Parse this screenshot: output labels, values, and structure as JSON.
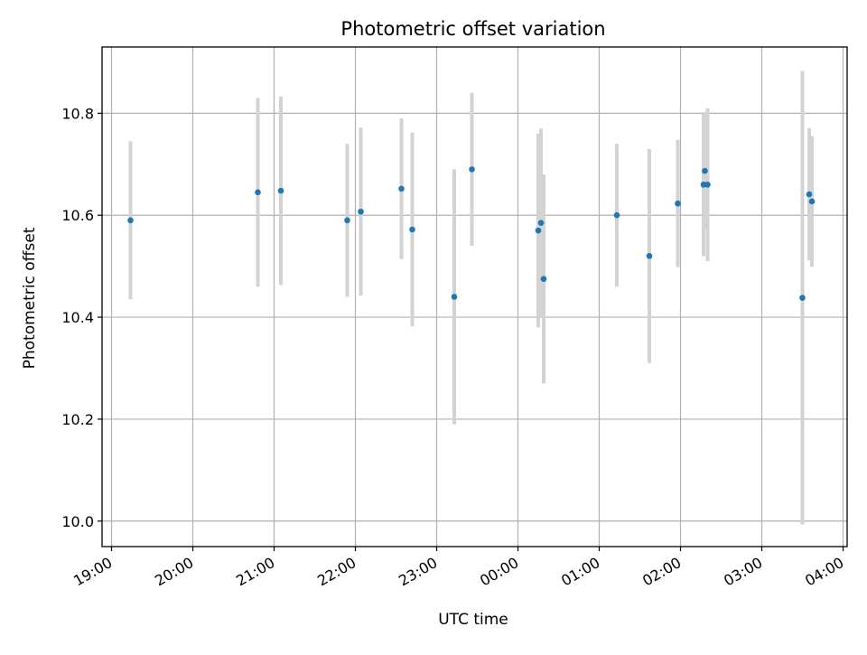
{
  "chart_data": {
    "type": "scatter",
    "title": "Photometric offset variation",
    "xlabel": "UTC time",
    "ylabel": "Photometric offset",
    "x_tick_labels": [
      "19:00",
      "20:00",
      "21:00",
      "22:00",
      "23:00",
      "00:00",
      "01:00",
      "02:00",
      "03:00",
      "04:00"
    ],
    "y_tick_labels": [
      "10.0",
      "10.2",
      "10.4",
      "10.6",
      "10.8"
    ],
    "y_ticks": [
      10.0,
      10.2,
      10.4,
      10.6,
      10.8
    ],
    "xlim": [
      "18:53",
      "04:03"
    ],
    "ylim": [
      9.95,
      10.93
    ],
    "grid": true,
    "marker_color": "#1f77b4",
    "errorbar_color": "#d3d3d3",
    "series": [
      {
        "points": [
          {
            "x": "19:14",
            "y": 10.59,
            "err": 0.155
          },
          {
            "x": "20:48",
            "y": 10.645,
            "err": 0.185
          },
          {
            "x": "21:05",
            "y": 10.648,
            "err": 0.185
          },
          {
            "x": "21:54",
            "y": 10.59,
            "err": 0.15
          },
          {
            "x": "22:04",
            "y": 10.607,
            "err": 0.165
          },
          {
            "x": "22:34",
            "y": 10.652,
            "err": 0.138
          },
          {
            "x": "22:42",
            "y": 10.572,
            "err": 0.19
          },
          {
            "x": "23:13",
            "y": 10.44,
            "err": 0.25
          },
          {
            "x": "23:26",
            "y": 10.69,
            "err": 0.15
          },
          {
            "x": "00:15",
            "y": 10.57,
            "err": 0.19
          },
          {
            "x": "00:17",
            "y": 10.585,
            "err": 0.185
          },
          {
            "x": "00:19",
            "y": 10.475,
            "err": 0.205
          },
          {
            "x": "01:13",
            "y": 10.6,
            "err": 0.14
          },
          {
            "x": "01:37",
            "y": 10.52,
            "err": 0.21
          },
          {
            "x": "01:58",
            "y": 10.623,
            "err": 0.125
          },
          {
            "x": "02:17",
            "y": 10.66,
            "err": 0.14
          },
          {
            "x": "02:18",
            "y": 10.687,
            "err": 0.115
          },
          {
            "x": "02:20",
            "y": 10.66,
            "err": 0.15
          },
          {
            "x": "03:30",
            "y": 10.438,
            "err": 0.445
          },
          {
            "x": "03:35",
            "y": 10.641,
            "err": 0.13
          },
          {
            "x": "03:37",
            "y": 10.627,
            "err": 0.128
          }
        ]
      }
    ]
  }
}
